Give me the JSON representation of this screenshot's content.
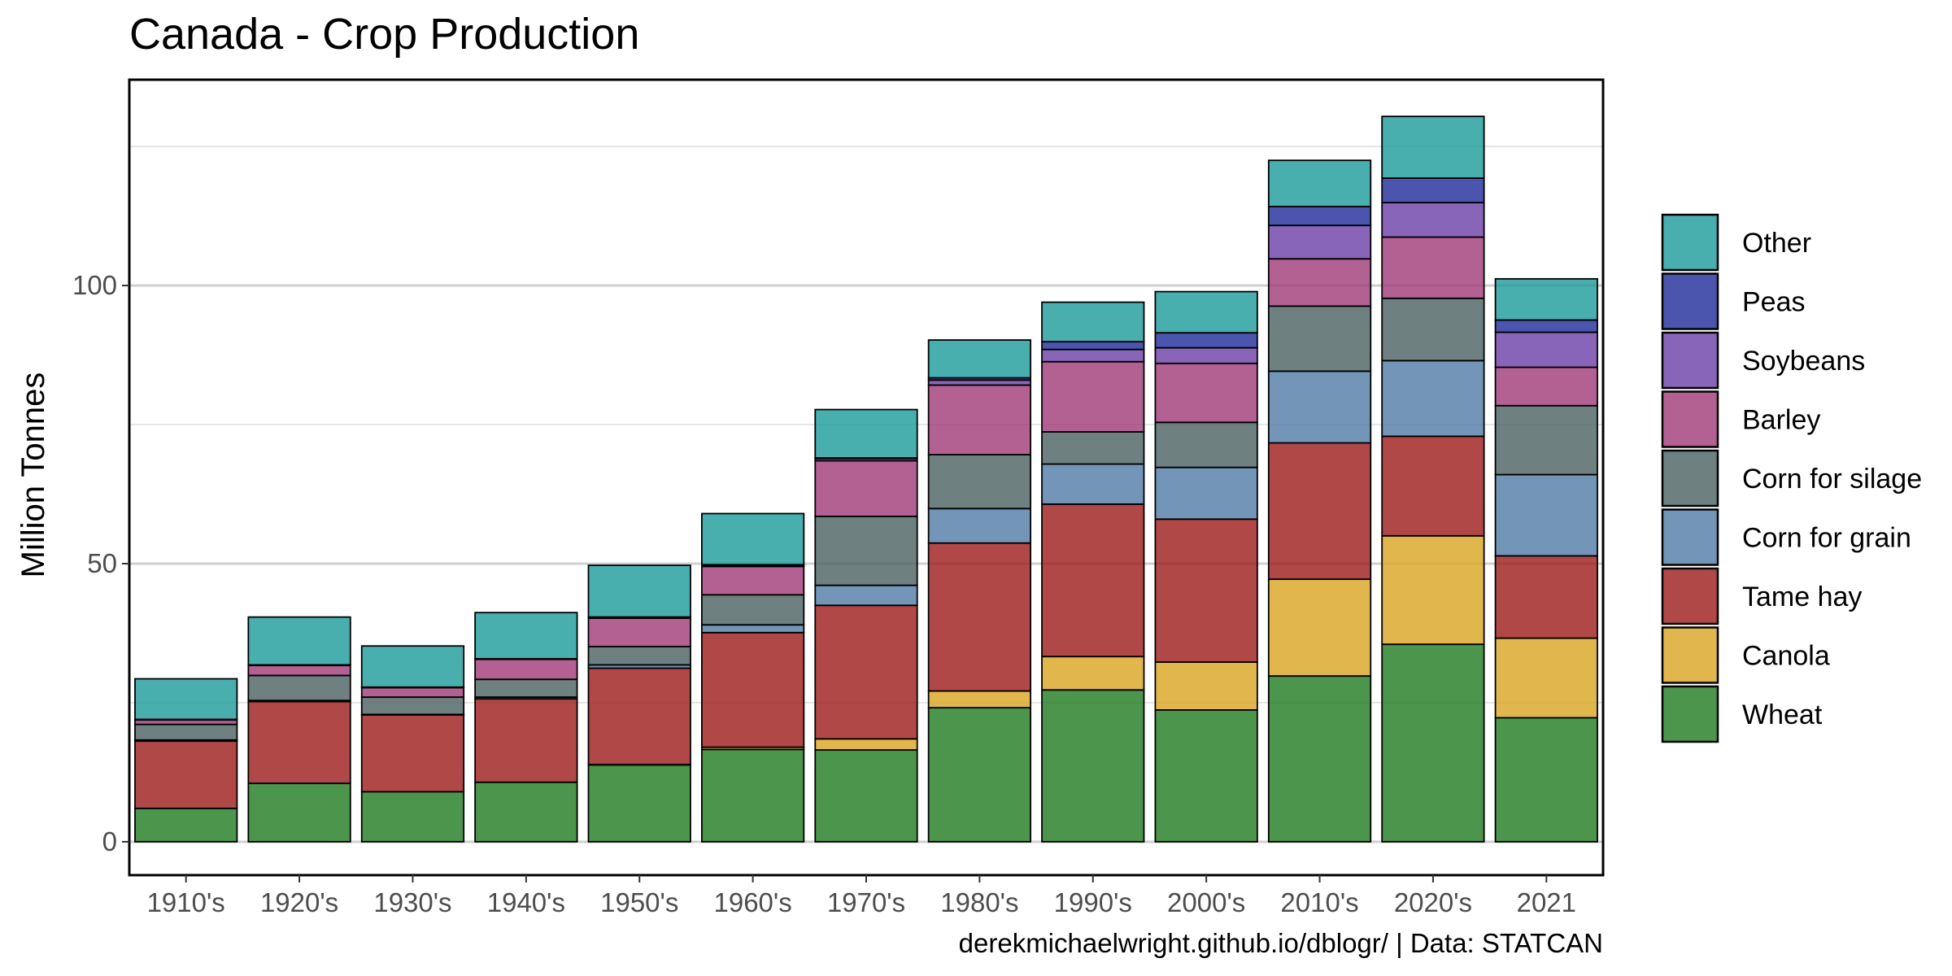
{
  "chart_data": {
    "type": "bar",
    "stacked": true,
    "title": "Canada - Crop Production",
    "xlabel": "",
    "ylabel": "Million Tonnes",
    "caption": "derekmichaelwright.github.io/dblogr/ | Data: STATCAN",
    "ylim": [
      -6,
      137
    ],
    "yticks": [
      0,
      50,
      100
    ],
    "grid": true,
    "legend_position": "right",
    "categories": [
      "1910's",
      "1920's",
      "1930's",
      "1940's",
      "1950's",
      "1960's",
      "1970's",
      "1980's",
      "1990's",
      "2000's",
      "2010's",
      "2020's",
      "2021"
    ],
    "series": [
      {
        "name": "Wheat",
        "color": "#1f7a1f",
        "values": [
          6.0,
          10.5,
          9.0,
          10.7,
          13.8,
          16.6,
          16.5,
          24.1,
          27.3,
          23.7,
          29.8,
          35.5,
          22.3
        ]
      },
      {
        "name": "Canola",
        "color": "#d9a520",
        "values": [
          0.0,
          0.0,
          0.0,
          0.0,
          0.1,
          0.4,
          2.0,
          3.0,
          6.0,
          8.6,
          17.4,
          19.5,
          14.3
        ]
      },
      {
        "name": "Tame hay",
        "color": "#9e1a1a",
        "values": [
          12.1,
          14.7,
          13.8,
          15.0,
          17.3,
          20.6,
          24.0,
          26.6,
          27.4,
          25.7,
          24.5,
          17.9,
          14.8
        ]
      },
      {
        "name": "Corn for grain",
        "color": "#4f7aa6",
        "values": [
          0.2,
          0.2,
          0.1,
          0.3,
          0.6,
          1.4,
          3.6,
          6.2,
          7.2,
          9.3,
          12.9,
          13.6,
          14.6
        ]
      },
      {
        "name": "Corn for silage",
        "color": "#4a6060",
        "values": [
          2.8,
          4.5,
          3.1,
          3.2,
          3.3,
          5.4,
          12.4,
          9.7,
          5.8,
          8.1,
          11.7,
          11.2,
          12.4
        ]
      },
      {
        "name": "Barley",
        "color": "#a03a78",
        "values": [
          0.8,
          1.8,
          1.7,
          3.6,
          5.1,
          5.1,
          10.0,
          12.5,
          12.6,
          10.6,
          8.5,
          11.0,
          6.9
        ]
      },
      {
        "name": "Soybeans",
        "color": "#6a3ea6",
        "values": [
          0.0,
          0.0,
          0.0,
          0.0,
          0.1,
          0.2,
          0.4,
          0.9,
          2.2,
          2.8,
          6.0,
          6.2,
          6.3
        ]
      },
      {
        "name": "Peas",
        "color": "#1f2a9a",
        "values": [
          0.1,
          0.1,
          0.1,
          0.1,
          0.1,
          0.1,
          0.1,
          0.4,
          1.4,
          2.7,
          3.4,
          4.4,
          2.2
        ]
      },
      {
        "name": "Other",
        "color": "#1a9a9a",
        "values": [
          7.3,
          8.6,
          7.4,
          8.3,
          9.3,
          9.2,
          8.7,
          6.8,
          7.1,
          7.4,
          8.3,
          11.1,
          7.4
        ]
      }
    ],
    "legend_order": [
      "Other",
      "Peas",
      "Soybeans",
      "Barley",
      "Corn for silage",
      "Corn for grain",
      "Tame hay",
      "Canola",
      "Wheat"
    ]
  }
}
